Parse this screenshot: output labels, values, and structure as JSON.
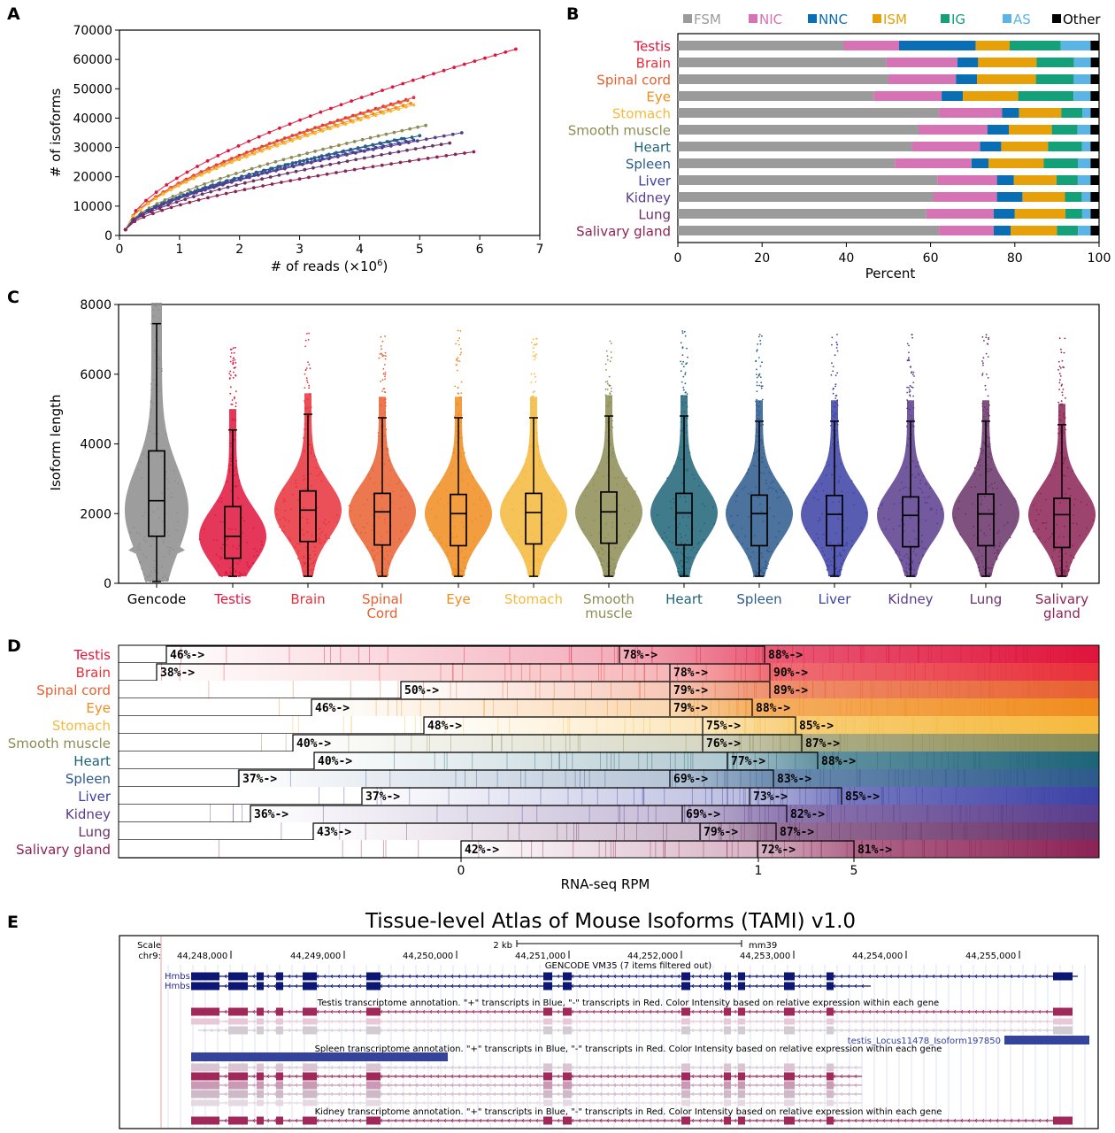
{
  "colors": {
    "tissues": [
      "#e0143c",
      "#e8303a",
      "#e86030",
      "#f08c1e",
      "#f5b93c",
      "#8c8c55",
      "#1e6478",
      "#2d5a8c",
      "#3c41a5",
      "#5a3c8c",
      "#693269",
      "#8c2355"
    ],
    "gencode": "#8c8c8c",
    "categories": {
      "FSM": "#9b9b9b",
      "NIC": "#d673b5",
      "NNC": "#0a6eb4",
      "ISM": "#e6a00a",
      "IG": "#14a078",
      "AS": "#5ab4e6",
      "Other": "#000000"
    },
    "browser_red": "#a0285a",
    "browser_blue": "#34439c",
    "browser_navy": "#0c1673",
    "browser_grey": "#d2ccd2"
  },
  "panels": {
    "A": "A",
    "B": "B",
    "C": "C",
    "D": "D",
    "E": "E"
  },
  "chart_data": [
    {
      "panel": "A",
      "type": "line",
      "xlabel": "# of reads (×10",
      "xlabel_sup": "6",
      "xlabel_end": ")",
      "ylabel": "# of isoforms",
      "xlim": [
        0,
        7
      ],
      "ylim": [
        0,
        70000
      ],
      "xticks": [
        "0",
        "1",
        "2",
        "3",
        "4",
        "5",
        "6",
        "7"
      ],
      "yticks": [
        "0",
        "10000",
        "20000",
        "30000",
        "40000",
        "50000",
        "60000",
        "70000"
      ],
      "series": [
        {
          "max_x": 6.6,
          "max_y": 63500
        },
        {
          "max_x": 4.9,
          "max_y": 47000
        },
        {
          "max_x": 4.8,
          "max_y": 46000
        },
        {
          "max_x": 4.85,
          "max_y": 45000
        },
        {
          "max_x": 4.9,
          "max_y": 44500
        },
        {
          "max_x": 5.1,
          "max_y": 37500
        },
        {
          "max_x": 5.0,
          "max_y": 34000
        },
        {
          "max_x": 4.7,
          "max_y": 33000
        },
        {
          "max_x": 4.9,
          "max_y": 32500
        },
        {
          "max_x": 5.7,
          "max_y": 35000
        },
        {
          "max_x": 5.5,
          "max_y": 31500
        },
        {
          "max_x": 5.9,
          "max_y": 28500
        }
      ]
    },
    {
      "panel": "B",
      "type": "bar",
      "orientation": "horizontal-stacked",
      "xlabel": "Percent",
      "xlim": [
        0,
        100
      ],
      "xticks": [
        "0",
        "20",
        "40",
        "60",
        "80",
        "100"
      ],
      "legend": [
        "FSM",
        "NIC",
        "NNC",
        "ISM",
        "IG",
        "AS",
        "Other"
      ],
      "legend_position": "top",
      "categories": [
        "Testis",
        "Brain",
        "Spinal cord",
        "Eye",
        "Stomach",
        "Smooth muscle",
        "Heart",
        "Spleen",
        "Liver",
        "Kidney",
        "Lung",
        "Salivary gland"
      ],
      "series": [
        {
          "name": "FSM",
          "values": [
            39,
            50,
            50,
            46,
            62,
            56,
            55,
            51,
            61,
            60,
            59,
            62
          ]
        },
        {
          "name": "NIC",
          "values": [
            13,
            17,
            16,
            16,
            15,
            16,
            16,
            18,
            14,
            15,
            16,
            13
          ]
        },
        {
          "name": "NNC",
          "values": [
            18,
            5,
            5,
            5,
            4,
            5,
            5,
            4,
            4,
            6,
            5,
            4
          ]
        },
        {
          "name": "ISM",
          "values": [
            8,
            14,
            14,
            13,
            10,
            10,
            11,
            13,
            10,
            10,
            12,
            11
          ]
        },
        {
          "name": "IG",
          "values": [
            12,
            9,
            9,
            13,
            5,
            6,
            8,
            8,
            5,
            4,
            4,
            5
          ]
        },
        {
          "name": "AS",
          "values": [
            7,
            4,
            4,
            4,
            2,
            3,
            2,
            3,
            3,
            2,
            2,
            3
          ]
        },
        {
          "name": "Other",
          "values": [
            2,
            2,
            2,
            2,
            2,
            2,
            2,
            2,
            2,
            2,
            2,
            2
          ]
        }
      ]
    },
    {
      "panel": "C",
      "type": "scatter",
      "subtype": "beeswarm-boxplot",
      "ylabel": "Isoform length",
      "ylim": [
        0,
        8000
      ],
      "yticks": [
        "0",
        "2000",
        "4000",
        "6000",
        "8000"
      ],
      "categories": [
        {
          "l1": "Gencode",
          "l2": ""
        },
        {
          "l1": "Testis",
          "l2": ""
        },
        {
          "l1": "Brain",
          "l2": ""
        },
        {
          "l1": "Spinal",
          "l2": "Cord"
        },
        {
          "l1": "Eye",
          "l2": ""
        },
        {
          "l1": "Stomach",
          "l2": ""
        },
        {
          "l1": "Smooth",
          "l2": "muscle"
        },
        {
          "l1": "Heart",
          "l2": ""
        },
        {
          "l1": "Spleen",
          "l2": ""
        },
        {
          "l1": "Liver",
          "l2": ""
        },
        {
          "l1": "Kidney",
          "l2": ""
        },
        {
          "l1": "Lung",
          "l2": ""
        },
        {
          "l1": "Salivary",
          "l2": "gland"
        }
      ],
      "boxes": [
        {
          "q1": 1350,
          "median": 2370,
          "q3": 3800,
          "wlow": 50,
          "whigh": 7450
        },
        {
          "q1": 720,
          "median": 1350,
          "q3": 2200,
          "wlow": 200,
          "whigh": 4400
        },
        {
          "q1": 1200,
          "median": 2100,
          "q3": 2650,
          "wlow": 200,
          "whigh": 4850
        },
        {
          "q1": 1100,
          "median": 2050,
          "q3": 2580,
          "wlow": 200,
          "whigh": 4750
        },
        {
          "q1": 1080,
          "median": 2000,
          "q3": 2550,
          "wlow": 200,
          "whigh": 4750
        },
        {
          "q1": 1130,
          "median": 2030,
          "q3": 2580,
          "wlow": 200,
          "whigh": 4750
        },
        {
          "q1": 1150,
          "median": 2050,
          "q3": 2620,
          "wlow": 200,
          "whigh": 4800
        },
        {
          "q1": 1100,
          "median": 2020,
          "q3": 2580,
          "wlow": 200,
          "whigh": 4800
        },
        {
          "q1": 1080,
          "median": 2000,
          "q3": 2530,
          "wlow": 200,
          "whigh": 4650
        },
        {
          "q1": 1080,
          "median": 1980,
          "q3": 2520,
          "wlow": 200,
          "whigh": 4650
        },
        {
          "q1": 1050,
          "median": 1950,
          "q3": 2480,
          "wlow": 200,
          "whigh": 4650
        },
        {
          "q1": 1080,
          "median": 1990,
          "q3": 2560,
          "wlow": 200,
          "whigh": 4650
        },
        {
          "q1": 1030,
          "median": 1970,
          "q3": 2440,
          "wlow": 200,
          "whigh": 4550
        }
      ]
    },
    {
      "panel": "D",
      "type": "heatmap",
      "xlabel": "RNA-seq RPM",
      "xticks": [
        "0",
        "1",
        "5"
      ],
      "categories": [
        "Testis",
        "Brain",
        "Spinal cord",
        "Eye",
        "Stomach",
        "Smooth muscle",
        "Heart",
        "Spleen",
        "Liver",
        "Kidney",
        "Lung",
        "Salivary gland"
      ],
      "percent_labels": [
        [
          "46%->",
          "78%->",
          "88%->"
        ],
        [
          "38%->",
          "78%->",
          "90%->"
        ],
        [
          "50%->",
          "79%->",
          "89%->"
        ],
        [
          "46%->",
          "79%->",
          "88%->"
        ],
        [
          "48%->",
          "75%->",
          "85%->"
        ],
        [
          "40%->",
          "76%->",
          "87%->"
        ],
        [
          "40%->",
          "77%->",
          "88%->"
        ],
        [
          "37%->",
          "69%->",
          "83%->"
        ],
        [
          "37%->",
          "73%->",
          "85%->"
        ],
        [
          "36%->",
          "69%->",
          "82%->"
        ],
        [
          "43%->",
          "79%->",
          "87%->"
        ],
        [
          "42%->",
          "72%->",
          "81%->"
        ]
      ]
    }
  ],
  "browser": {
    "title": "Tissue-level Atlas of Mouse Isoforms (TAMI) v1.0",
    "scale_label": "Scale",
    "chr_label": "chr9:",
    "scale_bar": "2 kb",
    "assembly": "mm39",
    "coords": [
      "44,248,000",
      "44,249,000",
      "44,250,000",
      "44,251,000",
      "44,252,000",
      "44,253,000",
      "44,254,000",
      "44,255,000"
    ],
    "gencode_track": "GENCODE VM35 (7 items filtered out)",
    "gene_labels": [
      "Hmbs",
      "Hmbs"
    ],
    "testis_track": "Testis transcriptome annotation. \"+\" transcripts in Blue, \"-\" transcripts in Red. Color Intensity based on relative expression within each gene",
    "highlight_label": "testis_Locus11478_Isoform197850",
    "spleen_track": "Spleen transcriptome annotation. \"+\" transcripts in Blue, \"-\" transcripts in Red. Color Intensity based on relative expression within each gene",
    "kidney_track": "Kidney transcriptome annotation. \"+\" transcripts in Blue, \"-\" transcripts in Red. Color Intensity based on relative expression within each gene"
  }
}
